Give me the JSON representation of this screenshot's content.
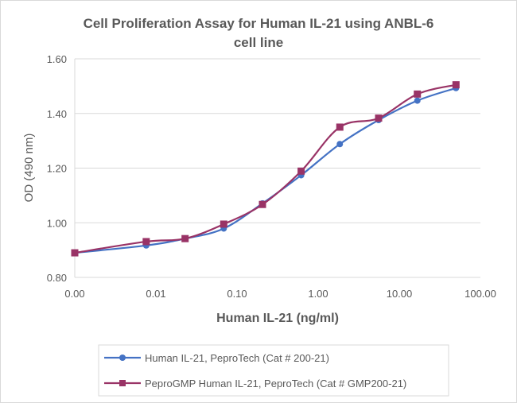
{
  "chart_data": {
    "type": "line",
    "title": "Cell Proliferation Assay for Human IL-21 using ANBL-6 cell line",
    "title_lines": [
      "Cell Proliferation Assay for Human IL-21 using ANBL-6",
      "cell line"
    ],
    "xlabel": "Human IL-21 (ng/ml)",
    "ylabel": "OD (490 nm)",
    "x_scale": "log",
    "xlim": [
      0.001,
      100
    ],
    "ylim": [
      0.8,
      1.6
    ],
    "x_ticks": [
      "0.00",
      "0.01",
      "0.10",
      "1.00",
      "10.00",
      "100.00"
    ],
    "y_ticks": [
      "0.80",
      "1.00",
      "1.20",
      "1.40",
      "1.60"
    ],
    "grid": "horizontal",
    "legend_position": "bottom",
    "x": [
      0.001,
      0.0076,
      0.0229,
      0.0686,
      0.206,
      0.617,
      1.85,
      5.56,
      16.7,
      50
    ],
    "series": [
      {
        "name": "Human IL-21, PeproTech (Cat # 200-21)",
        "color": "#4472C4",
        "marker": "circle",
        "values": [
          0.89,
          0.917,
          0.942,
          0.979,
          1.071,
          1.174,
          1.288,
          1.376,
          1.447,
          1.493
        ]
      },
      {
        "name": "PeproGMP Human IL-21, PeproTech (Cat # GMP200-21)",
        "color": "#993366",
        "marker": "square",
        "values": [
          0.89,
          0.931,
          0.942,
          0.995,
          1.067,
          1.189,
          1.35,
          1.383,
          1.471,
          1.505
        ]
      }
    ]
  }
}
